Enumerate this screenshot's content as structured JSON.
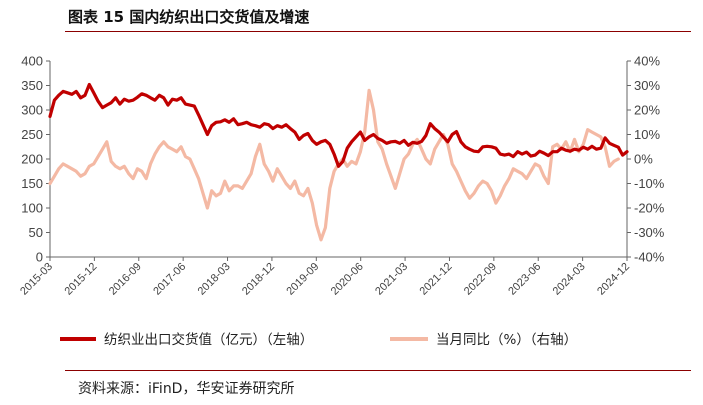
{
  "header": {
    "figure_title": "图表 15  国内纺织出口交货值及增速"
  },
  "footer": {
    "source": "资料来源：iFinD，华安证券研究所"
  },
  "chart_data": {
    "type": "line",
    "title": "图表 15  国内纺织出口交货值及增速",
    "x_tick_labels": [
      "2015-03",
      "2015-12",
      "2016-09",
      "2017-06",
      "2018-03",
      "2018-12",
      "2019-09",
      "2020-06",
      "2021-03",
      "2021-12",
      "2022-09",
      "2023-06",
      "2024-03",
      "2024-12"
    ],
    "y_left": {
      "ylim": [
        0,
        400
      ],
      "ticks": [
        "0",
        "50",
        "100",
        "150",
        "200",
        "250",
        "300",
        "350",
        "400"
      ]
    },
    "y_right": {
      "ylim": [
        -40,
        40
      ],
      "ticks": [
        "-40%",
        "-30%",
        "-20%",
        "-10%",
        "0%",
        "10%",
        "20%",
        "30%",
        "40%"
      ]
    },
    "grid": false,
    "legend_position": "bottom",
    "series": [
      {
        "name": "纺织业出口交货值（亿元）（左轴）",
        "axis": "left",
        "color": "#c00000",
        "values": [
          287,
          320,
          330,
          338,
          335,
          332,
          338,
          325,
          330,
          352,
          335,
          318,
          305,
          310,
          315,
          325,
          312,
          322,
          318,
          320,
          326,
          333,
          330,
          325,
          320,
          330,
          325,
          310,
          322,
          320,
          325,
          312,
          310,
          308,
          290,
          270,
          250,
          268,
          275,
          276,
          280,
          275,
          282,
          270,
          272,
          275,
          270,
          268,
          265,
          272,
          270,
          262,
          268,
          265,
          270,
          262,
          255,
          240,
          248,
          252,
          238,
          230,
          235,
          238,
          230,
          210,
          185,
          195,
          222,
          235,
          245,
          255,
          238,
          245,
          250,
          242,
          238,
          232,
          235,
          236,
          232,
          238,
          228,
          234,
          232,
          236,
          248,
          272,
          262,
          255,
          245,
          235,
          250,
          256,
          235,
          225,
          220,
          216,
          215,
          225,
          226,
          225,
          222,
          210,
          208,
          210,
          205,
          215,
          210,
          214,
          206,
          208,
          216,
          212,
          207,
          215,
          215,
          222,
          218,
          216,
          220,
          218,
          224,
          220,
          226,
          220,
          222,
          243,
          232,
          228,
          224,
          208,
          215
        ]
      },
      {
        "name": "当月同比（%）（右轴）",
        "axis": "right",
        "color": "#f4b9a4",
        "values": [
          -10,
          -7,
          -4,
          -2,
          -3,
          -4,
          -5,
          -7,
          -6,
          -3,
          -2,
          1,
          4,
          7,
          -1,
          -3,
          -4,
          -3,
          -6,
          -8,
          -4,
          -5,
          -8,
          -2,
          2,
          5,
          7,
          5,
          4,
          3,
          5,
          1,
          0,
          -4,
          -8,
          -14,
          -20,
          -13,
          -15,
          -14,
          -9,
          -13,
          -11,
          -11,
          -12,
          -9,
          -6,
          1,
          6,
          -2,
          -5,
          -9,
          -4,
          -7,
          -10,
          -12,
          -9,
          -14,
          -15,
          -12,
          -18,
          -27,
          -33,
          -28,
          -12,
          -5,
          -2,
          0,
          -3,
          -1,
          -2,
          3,
          11,
          28,
          20,
          7,
          4,
          -2,
          -7,
          -12,
          -6,
          0,
          2,
          6,
          8,
          4,
          0,
          -2,
          4,
          7,
          10,
          6,
          -2,
          -5,
          -9,
          -13,
          -16,
          -14,
          -11,
          -9,
          -10,
          -13,
          -18,
          -15,
          -11,
          -8,
          -4,
          -5,
          -6,
          -8,
          -5,
          -2,
          -3,
          -7,
          -10,
          5,
          6,
          4,
          7,
          3,
          8,
          3,
          6,
          12,
          11,
          10,
          9,
          5,
          -3,
          -1,
          0
        ]
      }
    ]
  }
}
